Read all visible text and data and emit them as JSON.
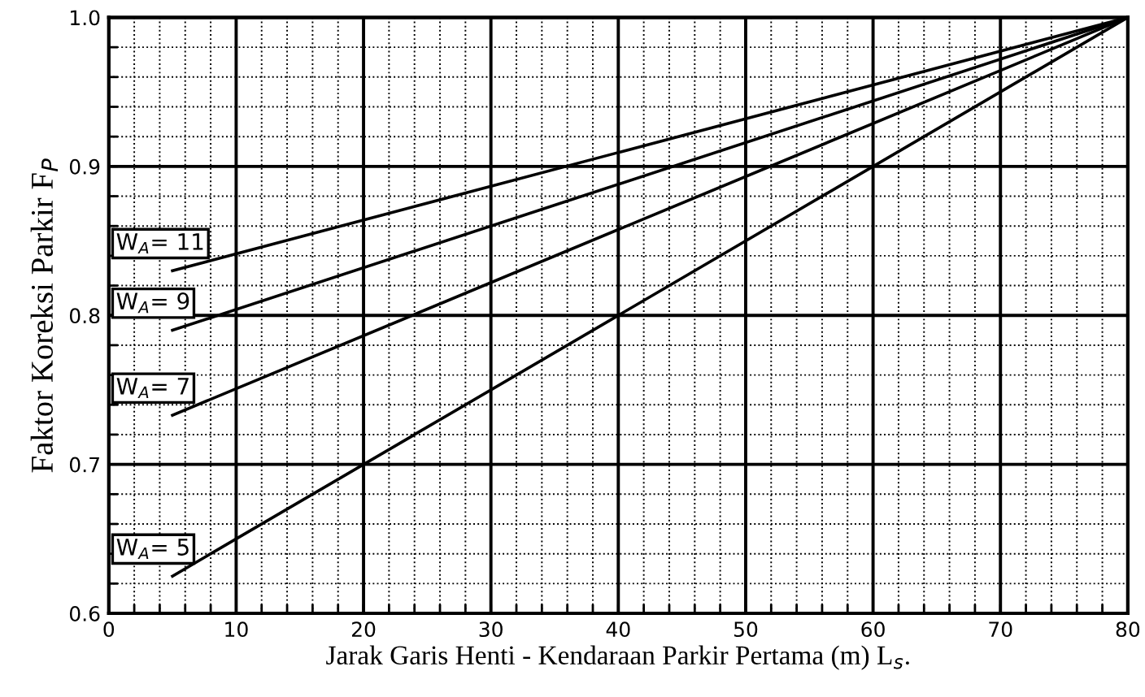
{
  "chart_data": {
    "type": "line",
    "xlabel": "Jarak Garis Henti - Kendaraan Parkir Pertama (m) L$_{s}$.",
    "ylabel": "Faktor Koreksi Parkir F$_{P}$",
    "x": [
      5,
      80
    ],
    "series": [
      {
        "name": "W$_{A}$= 11",
        "color": "#000000",
        "values": [
          0.83,
          1.0
        ]
      },
      {
        "name": "W$_{A}$= 9",
        "color": "#000000",
        "values": [
          0.79,
          1.0
        ]
      },
      {
        "name": "W$_{A}$= 7",
        "color": "#000000",
        "values": [
          0.733,
          1.0
        ]
      },
      {
        "name": "W$_{A}$= 5",
        "color": "#000000",
        "values": [
          0.625,
          1.0
        ]
      }
    ],
    "xlim": [
      0,
      80
    ],
    "ylim": [
      0.6,
      1.0
    ],
    "xticks": [
      0,
      {
        "value": 2,
        "label": null
      },
      {
        "value": 4,
        "label": null
      },
      {
        "value": 6,
        "label": null
      },
      {
        "value": 8,
        "label": null
      },
      10,
      {
        "value": 12,
        "label": null
      },
      {
        "value": 14,
        "label": null
      },
      {
        "value": 16,
        "label": null
      },
      {
        "value": 18,
        "label": null
      },
      20,
      {
        "value": 22,
        "label": null
      },
      {
        "value": 24,
        "label": null
      },
      {
        "value": 26,
        "label": null
      },
      {
        "value": 28,
        "label": null
      },
      30,
      {
        "value": 32,
        "label": null
      },
      {
        "value": 34,
        "label": null
      },
      {
        "value": 36,
        "label": null
      },
      {
        "value": 38,
        "label": null
      },
      40,
      {
        "value": 42,
        "label": null
      },
      {
        "value": 44,
        "label": null
      },
      {
        "value": 46,
        "label": null
      },
      {
        "value": 48,
        "label": null
      },
      50,
      {
        "value": 52,
        "label": null
      },
      {
        "value": 54,
        "label": null
      },
      {
        "value": 56,
        "label": null
      },
      {
        "value": 58,
        "label": null
      },
      60,
      {
        "value": 62,
        "label": null
      },
      {
        "value": 64,
        "label": null
      },
      {
        "value": 66,
        "label": null
      },
      {
        "value": 68,
        "label": null
      },
      70,
      {
        "value": 72,
        "label": null
      },
      {
        "value": 74,
        "label": null
      },
      {
        "value": 76,
        "label": null
      },
      {
        "value": 78,
        "label": null
      },
      80
    ],
    "yticks": [
      0.6,
      {
        "value": 0.62,
        "label": null
      },
      {
        "value": 0.64,
        "label": null
      },
      {
        "value": 0.66,
        "label": null
      },
      {
        "value": 0.68,
        "label": null
      },
      0.7,
      {
        "value": 0.72,
        "label": null
      },
      {
        "value": 0.74,
        "label": null
      },
      {
        "value": 0.76,
        "label": null
      },
      {
        "value": 0.78,
        "label": null
      },
      0.8,
      {
        "value": 0.82,
        "label": null
      },
      {
        "value": 0.84,
        "label": null
      },
      {
        "value": 0.86,
        "label": null
      },
      {
        "value": 0.88,
        "label": null
      },
      0.9,
      {
        "value": 0.92,
        "label": null
      },
      {
        "value": 0.94,
        "label": null
      },
      {
        "value": 0.96,
        "label": null
      },
      {
        "value": 0.98,
        "label": null
      },
      {
        "value": 1.0,
        "label": "1.0"
      }
    ],
    "grid": true,
    "marker": "none",
    "line_style": "solid"
  }
}
